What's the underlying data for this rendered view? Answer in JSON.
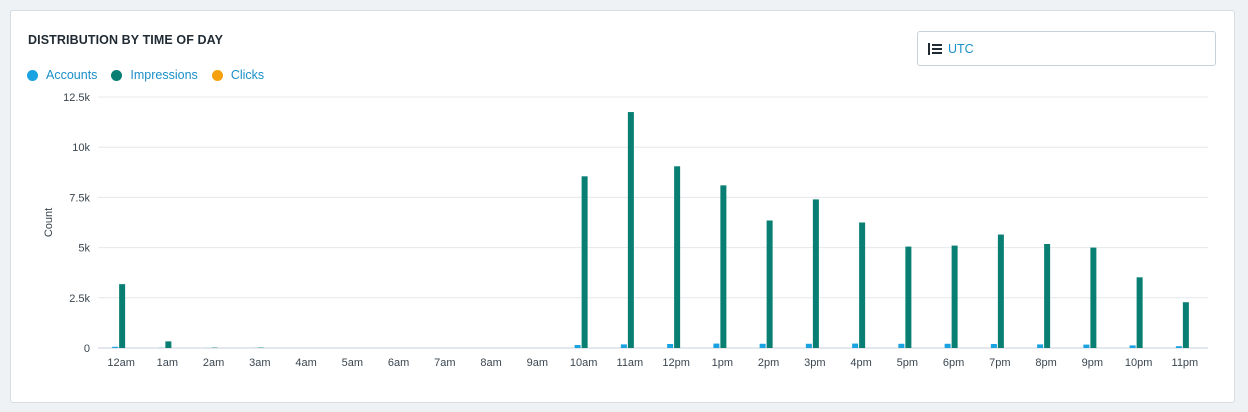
{
  "card": {
    "title": "DISTRIBUTION BY TIME OF DAY",
    "timezone_label": "UTC",
    "timezone_icon": "sort-lines-icon"
  },
  "colors": {
    "accounts": "#1aa3e0",
    "impressions": "#087f72",
    "clicks": "#f5a00f",
    "gridline": "#e4e8ec",
    "axis": "#c9d1d8",
    "link": "#1a8fc9"
  },
  "chart_data": {
    "type": "bar",
    "title": "DISTRIBUTION BY TIME OF DAY",
    "xlabel": "",
    "ylabel": "Count",
    "ylim": [
      0,
      12500
    ],
    "yticks": [
      "0",
      "2.5k",
      "5k",
      "7.5k",
      "10k",
      "12.5k"
    ],
    "ytick_values": [
      0,
      2500,
      5000,
      7500,
      10000,
      12500
    ],
    "grid": true,
    "legend_position": "top-left",
    "categories": [
      "12am",
      "1am",
      "2am",
      "3am",
      "4am",
      "5am",
      "6am",
      "7am",
      "8am",
      "9am",
      "10am",
      "11am",
      "12pm",
      "1pm",
      "2pm",
      "3pm",
      "4pm",
      "5pm",
      "6pm",
      "7pm",
      "8pm",
      "9pm",
      "10pm",
      "11pm"
    ],
    "series": [
      {
        "name": "Accounts",
        "color": "#1aa3e0",
        "values": [
          60,
          10,
          5,
          5,
          0,
          0,
          0,
          0,
          0,
          0,
          150,
          180,
          200,
          220,
          210,
          210,
          220,
          210,
          210,
          200,
          180,
          170,
          130,
          90
        ]
      },
      {
        "name": "Impressions",
        "color": "#087f72",
        "values": [
          3180,
          330,
          20,
          20,
          0,
          0,
          0,
          0,
          0,
          0,
          8550,
          11750,
          9050,
          8100,
          6350,
          7400,
          6250,
          5050,
          5100,
          5650,
          5180,
          5000,
          3520,
          2280
        ]
      },
      {
        "name": "Clicks",
        "color": "#f5a00f",
        "values": [
          0,
          0,
          0,
          0,
          0,
          0,
          0,
          0,
          0,
          0,
          0,
          0,
          0,
          0,
          0,
          0,
          0,
          0,
          0,
          0,
          0,
          0,
          0,
          0
        ]
      }
    ]
  }
}
